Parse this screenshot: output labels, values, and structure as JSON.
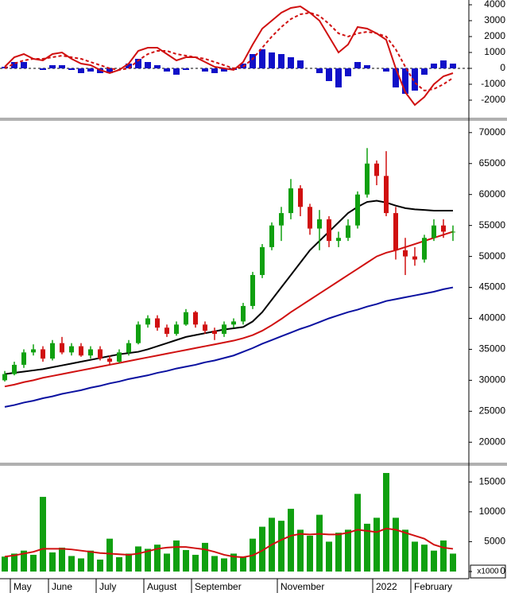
{
  "chart_data": [
    {
      "type": "macd",
      "ylim": [
        -3100,
        4300
      ],
      "yticks": [
        -2000,
        -1000,
        0,
        1000,
        2000,
        3000,
        4000
      ],
      "hist": {
        "color": "#1010c8",
        "values": [
          100,
          400,
          400,
          0,
          -100,
          200,
          200,
          -100,
          -300,
          -200,
          -300,
          -300,
          0,
          300,
          600,
          400,
          200,
          -200,
          -400,
          -100,
          0,
          -200,
          -300,
          -200,
          -100,
          300,
          900,
          1200,
          1000,
          900,
          700,
          500,
          0,
          -300,
          -800,
          -1200,
          -500,
          400,
          200,
          0,
          -200,
          -1200,
          -1600,
          -1400,
          -400,
          300,
          500,
          300
        ]
      },
      "series": [
        {
          "color": "#d01010",
          "dash": false,
          "values": [
            100,
            700,
            900,
            600,
            500,
            900,
            1000,
            600,
            300,
            200,
            -100,
            -300,
            -100,
            300,
            1100,
            1300,
            1300,
            900,
            500,
            700,
            700,
            400,
            100,
            0,
            -100,
            400,
            1500,
            2500,
            3000,
            3500,
            3800,
            3900,
            3500,
            3000,
            2000,
            1000,
            1500,
            2600,
            2500,
            2200,
            1800,
            0,
            -1500,
            -2300,
            -1800,
            -1000,
            -500,
            -300
          ]
        },
        {
          "color": "#d01010",
          "dash": true,
          "values": [
            0,
            300,
            500,
            600,
            600,
            700,
            800,
            700,
            600,
            400,
            200,
            0,
            -100,
            0,
            500,
            900,
            1100,
            1100,
            900,
            800,
            700,
            600,
            400,
            200,
            0,
            100,
            600,
            1300,
            2000,
            2600,
            3100,
            3400,
            3500,
            3300,
            2800,
            2200,
            2000,
            2200,
            2300,
            2200,
            2000,
            1200,
            100,
            -900,
            -1400,
            -1300,
            -1000,
            -600
          ]
        }
      ]
    },
    {
      "type": "candlestick",
      "ylim": [
        16700,
        71900
      ],
      "yticks": [
        20000,
        25000,
        30000,
        35000,
        40000,
        45000,
        50000,
        55000,
        60000,
        65000,
        70000
      ],
      "up_color": "#10a010",
      "down_color": "#d01010",
      "candles": [
        [
          30000,
          31500,
          29800,
          31000
        ],
        [
          31000,
          33000,
          30800,
          32500
        ],
        [
          32500,
          35000,
          32000,
          34500
        ],
        [
          34500,
          35800,
          34000,
          35000
        ],
        [
          35000,
          35500,
          33000,
          33500
        ],
        [
          33500,
          36500,
          33200,
          36000
        ],
        [
          36000,
          37000,
          34200,
          34500
        ],
        [
          34500,
          36000,
          34000,
          35500
        ],
        [
          35500,
          36000,
          33800,
          34000
        ],
        [
          34000,
          35500,
          33500,
          35000
        ],
        [
          35000,
          35500,
          33200,
          33500
        ],
        [
          33500,
          34000,
          32500,
          33000
        ],
        [
          33000,
          35000,
          32800,
          34500
        ],
        [
          34500,
          36500,
          34000,
          36000
        ],
        [
          36000,
          39500,
          35800,
          39000
        ],
        [
          39000,
          40500,
          38500,
          40000
        ],
        [
          40000,
          40500,
          38000,
          38500
        ],
        [
          38500,
          39000,
          37000,
          37500
        ],
        [
          37500,
          39500,
          37200,
          39000
        ],
        [
          39000,
          41500,
          38800,
          41000
        ],
        [
          41000,
          41200,
          38500,
          39000
        ],
        [
          39000,
          39500,
          37500,
          38000
        ],
        [
          38000,
          38500,
          36500,
          37500
        ],
        [
          37500,
          39500,
          37000,
          39000
        ],
        [
          39000,
          40000,
          38500,
          39500
        ],
        [
          39500,
          42500,
          39000,
          42000
        ],
        [
          42000,
          47500,
          41500,
          47000
        ],
        [
          47000,
          52000,
          46500,
          51500
        ],
        [
          51500,
          55500,
          51000,
          55000
        ],
        [
          55000,
          58000,
          52500,
          57000
        ],
        [
          57000,
          62500,
          56000,
          61000
        ],
        [
          61000,
          61500,
          56500,
          58000
        ],
        [
          58000,
          58500,
          53500,
          54500
        ],
        [
          54500,
          57500,
          51000,
          56000
        ],
        [
          56000,
          56500,
          51500,
          52500
        ],
        [
          52500,
          54000,
          51500,
          53000
        ],
        [
          53000,
          56000,
          52500,
          55000
        ],
        [
          55000,
          60500,
          54500,
          60000
        ],
        [
          60000,
          67500,
          59500,
          65000
        ],
        [
          65000,
          65500,
          61500,
          63000
        ],
        [
          63000,
          67000,
          56500,
          57000
        ],
        [
          57000,
          58000,
          49500,
          51000
        ],
        [
          51000,
          53000,
          47000,
          50000
        ],
        [
          50000,
          51500,
          48500,
          49500
        ],
        [
          49500,
          53500,
          49000,
          53000
        ],
        [
          53000,
          56000,
          52500,
          55000
        ],
        [
          55000,
          56000,
          53000,
          54000
        ],
        [
          54000,
          55000,
          52500,
          54000
        ]
      ],
      "series": [
        {
          "color": "#000000",
          "values": [
            31000,
            31200,
            31400,
            31600,
            31800,
            32100,
            32400,
            32700,
            33000,
            33300,
            33600,
            33900,
            34200,
            34400,
            34600,
            35000,
            35500,
            36000,
            36500,
            37000,
            37300,
            37600,
            37900,
            38200,
            38400,
            38600,
            39500,
            41000,
            43000,
            45000,
            47000,
            49000,
            51000,
            52500,
            54000,
            55500,
            57000,
            58000,
            58800,
            59000,
            58700,
            58200,
            57800,
            57600,
            57500,
            57400,
            57400,
            57400
          ]
        },
        {
          "color": "#d01010",
          "values": [
            29000,
            29300,
            29700,
            30000,
            30400,
            30700,
            31000,
            31300,
            31600,
            31900,
            32200,
            32500,
            32800,
            33100,
            33400,
            33700,
            34000,
            34300,
            34600,
            34900,
            35200,
            35500,
            35800,
            36100,
            36400,
            36800,
            37300,
            38000,
            38900,
            39900,
            41000,
            42000,
            43000,
            44000,
            45000,
            46000,
            47000,
            48000,
            49000,
            50000,
            50600,
            51000,
            51500,
            52000,
            52500,
            53000,
            53500,
            54000
          ]
        },
        {
          "color": "#0a10a0",
          "values": [
            25700,
            26000,
            26400,
            26700,
            27100,
            27400,
            27800,
            28100,
            28400,
            28800,
            29100,
            29500,
            29800,
            30200,
            30500,
            30800,
            31200,
            31500,
            31900,
            32200,
            32500,
            32900,
            33200,
            33600,
            34000,
            34600,
            35200,
            35900,
            36500,
            37100,
            37700,
            38300,
            38800,
            39400,
            40000,
            40500,
            41000,
            41400,
            41900,
            42300,
            42800,
            43100,
            43400,
            43700,
            44000,
            44300,
            44700,
            45000
          ]
        }
      ]
    },
    {
      "type": "volume",
      "ylim": [
        -1200,
        17700
      ],
      "yticks": [
        0,
        5000,
        10000,
        15000
      ],
      "unit_label": "x1000",
      "categories": [
        null,
        "May",
        null,
        null,
        null,
        "June",
        null,
        null,
        null,
        null,
        "July",
        null,
        null,
        null,
        null,
        "August",
        null,
        null,
        null,
        null,
        "September",
        null,
        null,
        null,
        null,
        null,
        null,
        null,
        null,
        "November",
        null,
        null,
        null,
        null,
        null,
        null,
        null,
        null,
        null,
        "2022",
        null,
        null,
        null,
        "February",
        null,
        null,
        null,
        null
      ],
      "color": "#10a010",
      "values": [
        2500,
        3000,
        3500,
        2800,
        12500,
        3200,
        4000,
        2600,
        2200,
        3500,
        2000,
        5500,
        2400,
        3000,
        4200,
        3800,
        4500,
        3000,
        5200,
        3600,
        2800,
        4800,
        2600,
        2200,
        3000,
        2500,
        5500,
        7500,
        9000,
        8500,
        10500,
        7000,
        6000,
        9500,
        5000,
        6500,
        7000,
        13000,
        8000,
        9000,
        16500,
        9000,
        7000,
        5000,
        4500,
        3500,
        5200,
        3000
      ],
      "series": [
        {
          "color": "#d01010",
          "values": [
            2500,
            2700,
            3000,
            3300,
            3800,
            3800,
            3800,
            3700,
            3500,
            3300,
            3100,
            3000,
            2900,
            2800,
            3000,
            3400,
            3800,
            4000,
            4100,
            4100,
            3900,
            3700,
            3300,
            2800,
            2500,
            2400,
            2700,
            3500,
            4500,
            5300,
            6000,
            6300,
            6200,
            6300,
            6200,
            6200,
            6500,
            7000,
            6800,
            6600,
            7200,
            7000,
            6500,
            6000,
            5500,
            4500,
            4000,
            3800
          ]
        }
      ]
    }
  ]
}
